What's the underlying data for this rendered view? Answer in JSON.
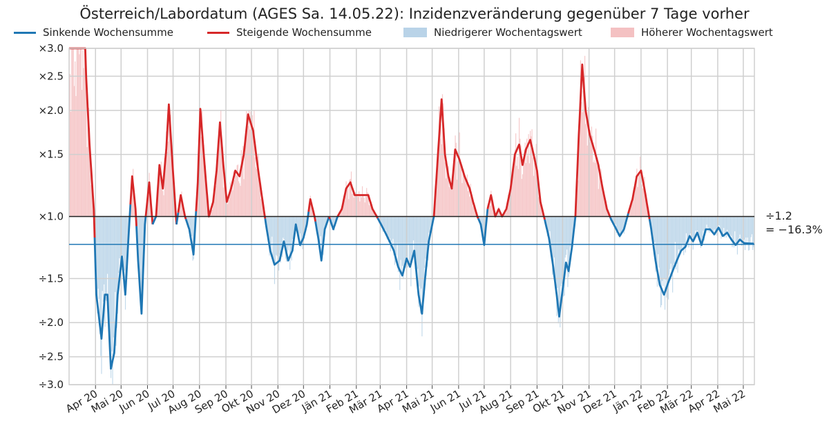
{
  "title": "Österreich/Labordatum (AGES Sa. 14.05.22): Inzidenzveränderung gegenüber 7 Tage vorher",
  "legend": [
    {
      "label": "Sinkende Wochensumme",
      "kind": "line",
      "color": "#1f77b4"
    },
    {
      "label": "Steigende Wochensumme",
      "kind": "line",
      "color": "#d62728"
    },
    {
      "label": "Niedrigerer Wochentagswert",
      "kind": "patch",
      "color": "#b9d3e8"
    },
    {
      "label": "Höherer Wochentagswert",
      "kind": "patch",
      "color": "#f4c1c2"
    }
  ],
  "annotation": {
    "line1": "÷1.2",
    "line2": "= −16.3%"
  },
  "chart_data": {
    "type": "line",
    "y_scale": "log",
    "ylim": [
      "÷3.0",
      "×3.0"
    ],
    "y_ticks": [
      "×3.0",
      "×2.5",
      "×2.0",
      "×1.5",
      "×1.0",
      "÷1.5",
      "÷2.0",
      "÷2.5",
      "÷3.0"
    ],
    "x_ticks": [
      "Apr 20",
      "Mai 20",
      "Jun 20",
      "Jul 20",
      "Aug 20",
      "Sep 20",
      "Okt 20",
      "Nov 20",
      "Dez 20",
      "Jän 21",
      "Feb 21",
      "Mär 21",
      "Apr 21",
      "Mai 21",
      "Jun 21",
      "Jul 21",
      "Aug 21",
      "Sep 21",
      "Okt 21",
      "Nov 21",
      "Dez 21",
      "Jän 22",
      "Feb 22",
      "Mär 22",
      "Apr 22",
      "Mai 22"
    ],
    "x_range": [
      "2020-03-01",
      "2022-05-14"
    ],
    "reference_line": {
      "value": "÷1.2",
      "color": "#1f77b4"
    },
    "baseline": "×1.0",
    "grid": true,
    "legend_position": "top",
    "series": [
      {
        "name": "Wochensumme (Veränderung gegenüber 7 Tage vorher)",
        "rising_color": "#d62728",
        "falling_color": "#1f77b4",
        "points": [
          [
            "2020-03-01",
            3.0
          ],
          [
            "2020-03-20",
            3.0
          ],
          [
            "2020-03-21",
            2.5
          ],
          [
            "2020-03-25",
            1.6
          ],
          [
            "2020-03-30",
            1.05
          ],
          [
            "2020-04-02",
            0.6
          ],
          [
            "2020-04-08",
            0.45
          ],
          [
            "2020-04-12",
            0.6
          ],
          [
            "2020-04-15",
            0.6
          ],
          [
            "2020-04-19",
            0.37
          ],
          [
            "2020-04-23",
            0.41
          ],
          [
            "2020-04-27",
            0.6
          ],
          [
            "2020-05-02",
            0.77
          ],
          [
            "2020-05-06",
            0.6
          ],
          [
            "2020-05-10",
            0.9
          ],
          [
            "2020-05-14",
            1.3
          ],
          [
            "2020-05-18",
            1.05
          ],
          [
            "2020-05-21",
            0.75
          ],
          [
            "2020-05-25",
            0.53
          ],
          [
            "2020-05-29",
            0.95
          ],
          [
            "2020-06-03",
            1.25
          ],
          [
            "2020-06-07",
            0.95
          ],
          [
            "2020-06-11",
            1.0
          ],
          [
            "2020-06-15",
            1.4
          ],
          [
            "2020-06-19",
            1.2
          ],
          [
            "2020-06-23",
            1.55
          ],
          [
            "2020-06-26",
            2.08
          ],
          [
            "2020-06-30",
            1.45
          ],
          [
            "2020-07-05",
            0.95
          ],
          [
            "2020-07-10",
            1.15
          ],
          [
            "2020-07-15",
            1.0
          ],
          [
            "2020-07-20",
            0.92
          ],
          [
            "2020-07-25",
            0.78
          ],
          [
            "2020-07-30",
            1.25
          ],
          [
            "2020-08-02",
            2.02
          ],
          [
            "2020-08-07",
            1.4
          ],
          [
            "2020-08-12",
            1.0
          ],
          [
            "2020-08-17",
            1.1
          ],
          [
            "2020-08-21",
            1.35
          ],
          [
            "2020-08-25",
            1.85
          ],
          [
            "2020-08-29",
            1.4
          ],
          [
            "2020-09-02",
            1.1
          ],
          [
            "2020-09-07",
            1.2
          ],
          [
            "2020-09-12",
            1.35
          ],
          [
            "2020-09-17",
            1.3
          ],
          [
            "2020-09-22",
            1.5
          ],
          [
            "2020-09-27",
            1.95
          ],
          [
            "2020-10-03",
            1.75
          ],
          [
            "2020-10-08",
            1.4
          ],
          [
            "2020-10-13",
            1.15
          ],
          [
            "2020-10-18",
            0.95
          ],
          [
            "2020-10-23",
            0.8
          ],
          [
            "2020-10-28",
            0.73
          ],
          [
            "2020-11-03",
            0.75
          ],
          [
            "2020-11-08",
            0.85
          ],
          [
            "2020-11-13",
            0.75
          ],
          [
            "2020-11-18",
            0.8
          ],
          [
            "2020-11-22",
            0.95
          ],
          [
            "2020-11-27",
            0.83
          ],
          [
            "2020-12-01",
            0.87
          ],
          [
            "2020-12-05",
            0.95
          ],
          [
            "2020-12-09",
            1.12
          ],
          [
            "2020-12-14",
            1.0
          ],
          [
            "2020-12-19",
            0.85
          ],
          [
            "2020-12-22",
            0.75
          ],
          [
            "2020-12-26",
            0.92
          ],
          [
            "2020-12-31",
            1.0
          ],
          [
            "2021-01-05",
            0.92
          ],
          [
            "2021-01-10",
            1.0
          ],
          [
            "2021-01-15",
            1.05
          ],
          [
            "2021-01-20",
            1.2
          ],
          [
            "2021-01-25",
            1.25
          ],
          [
            "2021-01-30",
            1.15
          ],
          [
            "2021-02-05",
            1.15
          ],
          [
            "2021-02-10",
            1.15
          ],
          [
            "2021-02-15",
            1.15
          ],
          [
            "2021-02-20",
            1.05
          ],
          [
            "2021-02-25",
            1.0
          ],
          [
            "2021-03-02",
            0.95
          ],
          [
            "2021-03-07",
            0.9
          ],
          [
            "2021-03-12",
            0.85
          ],
          [
            "2021-03-17",
            0.8
          ],
          [
            "2021-03-22",
            0.72
          ],
          [
            "2021-03-27",
            0.68
          ],
          [
            "2021-04-01",
            0.76
          ],
          [
            "2021-04-05",
            0.72
          ],
          [
            "2021-04-10",
            0.8
          ],
          [
            "2021-04-15",
            0.6
          ],
          [
            "2021-04-19",
            0.53
          ],
          [
            "2021-04-23",
            0.68
          ],
          [
            "2021-04-27",
            0.85
          ],
          [
            "2021-05-03",
            1.0
          ],
          [
            "2021-05-07",
            1.4
          ],
          [
            "2021-05-12",
            2.15
          ],
          [
            "2021-05-16",
            1.5
          ],
          [
            "2021-05-20",
            1.3
          ],
          [
            "2021-05-24",
            1.2
          ],
          [
            "2021-05-28",
            1.55
          ],
          [
            "2021-06-02",
            1.45
          ],
          [
            "2021-06-08",
            1.3
          ],
          [
            "2021-06-14",
            1.2
          ],
          [
            "2021-06-18",
            1.1
          ],
          [
            "2021-06-23",
            1.0
          ],
          [
            "2021-06-27",
            0.95
          ],
          [
            "2021-07-01",
            0.83
          ],
          [
            "2021-07-05",
            1.05
          ],
          [
            "2021-07-09",
            1.15
          ],
          [
            "2021-07-14",
            1.0
          ],
          [
            "2021-07-18",
            1.05
          ],
          [
            "2021-07-22",
            1.0
          ],
          [
            "2021-07-27",
            1.05
          ],
          [
            "2021-08-01",
            1.2
          ],
          [
            "2021-08-06",
            1.5
          ],
          [
            "2021-08-11",
            1.6
          ],
          [
            "2021-08-15",
            1.4
          ],
          [
            "2021-08-19",
            1.55
          ],
          [
            "2021-08-24",
            1.65
          ],
          [
            "2021-08-28",
            1.5
          ],
          [
            "2021-09-01",
            1.35
          ],
          [
            "2021-09-05",
            1.1
          ],
          [
            "2021-09-10",
            0.98
          ],
          [
            "2021-09-15",
            0.87
          ],
          [
            "2021-09-20",
            0.72
          ],
          [
            "2021-09-24",
            0.6
          ],
          [
            "2021-09-27",
            0.52
          ],
          [
            "2021-10-01",
            0.62
          ],
          [
            "2021-10-05",
            0.74
          ],
          [
            "2021-10-08",
            0.7
          ],
          [
            "2021-10-12",
            0.82
          ],
          [
            "2021-10-16",
            1.0
          ],
          [
            "2021-10-20",
            1.7
          ],
          [
            "2021-10-24",
            2.7
          ],
          [
            "2021-10-28",
            2.0
          ],
          [
            "2021-11-02",
            1.7
          ],
          [
            "2021-11-07",
            1.55
          ],
          [
            "2021-11-12",
            1.4
          ],
          [
            "2021-11-17",
            1.2
          ],
          [
            "2021-11-22",
            1.05
          ],
          [
            "2021-11-27",
            0.98
          ],
          [
            "2021-12-02",
            0.93
          ],
          [
            "2021-12-07",
            0.88
          ],
          [
            "2021-12-12",
            0.92
          ],
          [
            "2021-12-17",
            1.02
          ],
          [
            "2021-12-22",
            1.12
          ],
          [
            "2021-12-27",
            1.3
          ],
          [
            "2022-01-01",
            1.35
          ],
          [
            "2022-01-05",
            1.2
          ],
          [
            "2022-01-09",
            1.05
          ],
          [
            "2022-01-13",
            0.92
          ],
          [
            "2022-01-18",
            0.75
          ],
          [
            "2022-01-23",
            0.64
          ],
          [
            "2022-01-28",
            0.6
          ],
          [
            "2022-02-02",
            0.65
          ],
          [
            "2022-02-07",
            0.7
          ],
          [
            "2022-02-12",
            0.75
          ],
          [
            "2022-02-17",
            0.8
          ],
          [
            "2022-02-22",
            0.82
          ],
          [
            "2022-02-27",
            0.88
          ],
          [
            "2022-03-03",
            0.85
          ],
          [
            "2022-03-08",
            0.9
          ],
          [
            "2022-03-13",
            0.83
          ],
          [
            "2022-03-18",
            0.92
          ],
          [
            "2022-03-23",
            0.92
          ],
          [
            "2022-03-28",
            0.89
          ],
          [
            "2022-04-02",
            0.93
          ],
          [
            "2022-04-07",
            0.88
          ],
          [
            "2022-04-12",
            0.9
          ],
          [
            "2022-04-17",
            0.86
          ],
          [
            "2022-04-22",
            0.83
          ],
          [
            "2022-04-27",
            0.86
          ],
          [
            "2022-05-02",
            0.84
          ],
          [
            "2022-05-14",
            0.837
          ]
        ]
      }
    ]
  }
}
